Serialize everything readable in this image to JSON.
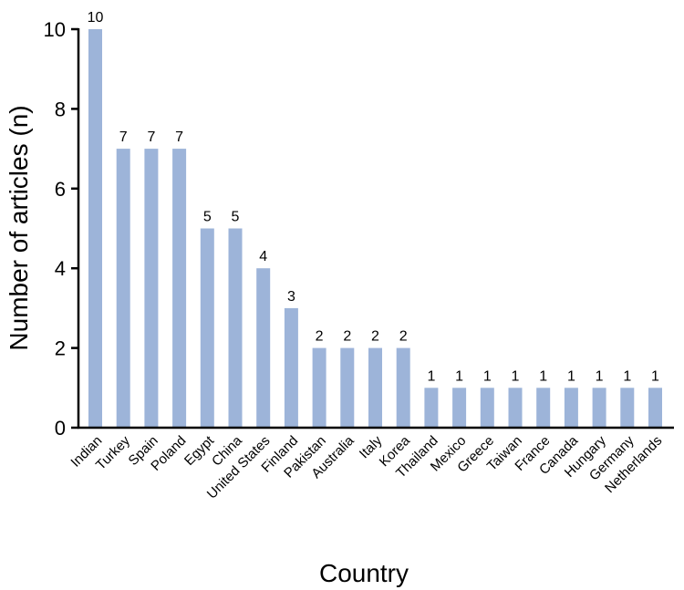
{
  "chart_data": {
    "type": "bar",
    "xlabel": "Country",
    "ylabel": "Number of articles (n)",
    "ylim": [
      0,
      10
    ],
    "yticks": [
      "0",
      "2",
      "4",
      "6",
      "8",
      "10"
    ],
    "grid": false,
    "bar_color": "#9db4d9",
    "categories": [
      "Indian",
      "Turkey",
      "Spain",
      "Poland",
      "Egypt",
      "China",
      "United States",
      "Finland",
      "Pakistan",
      "Australia",
      "Italy",
      "Korea",
      "Thailand",
      "Mexico",
      "Greece",
      "Taiwan",
      "France",
      "Canada",
      "Hungary",
      "Germany",
      "Netherlands"
    ],
    "values": [
      10,
      7,
      7,
      7,
      5,
      5,
      4,
      3,
      2,
      2,
      2,
      2,
      1,
      1,
      1,
      1,
      1,
      1,
      1,
      1,
      1
    ],
    "data_labels": [
      "10",
      "7",
      "7",
      "7",
      "5",
      "5",
      "4",
      "3",
      "2",
      "2",
      "2",
      "2",
      "1",
      "1",
      "1",
      "1",
      "1",
      "1",
      "1",
      "1",
      "1"
    ]
  }
}
